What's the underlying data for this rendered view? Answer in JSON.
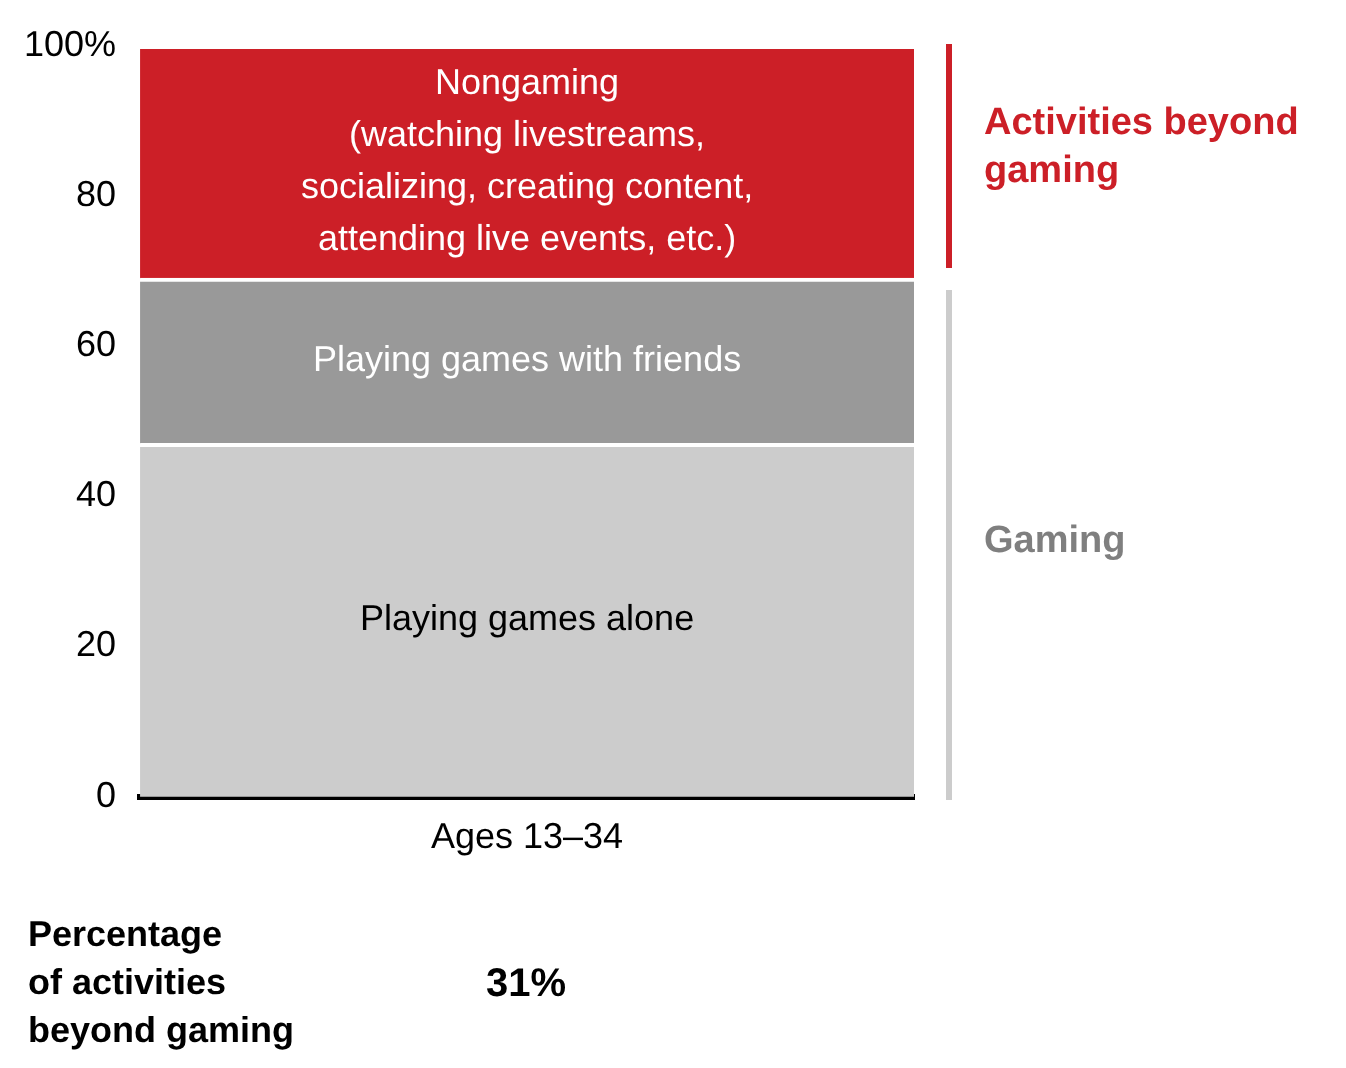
{
  "chart_data": {
    "type": "bar",
    "stacked": true,
    "categories": [
      "Ages 13–34"
    ],
    "series": [
      {
        "name": "Playing games alone",
        "color": "#cccccc",
        "values": [
          47
        ]
      },
      {
        "name": "Playing games with friends",
        "color": "#999999",
        "values": [
          22
        ]
      },
      {
        "name": "Nongaming\n(watching livestreams,\nsocializing, creating content,\nattending live events, etc.)",
        "color": "#cc1f27",
        "values": [
          31
        ]
      }
    ],
    "ylim": [
      0,
      100
    ],
    "yticks": [
      0,
      20,
      40,
      60,
      80,
      {
        "value": 100,
        "label": "100%"
      }
    ],
    "grid": false,
    "legend": false,
    "annotations": [
      "Percentage\nof activities\nbeyond gaming",
      "31%",
      "Activities beyond\ngaming",
      "Gaming"
    ]
  }
}
